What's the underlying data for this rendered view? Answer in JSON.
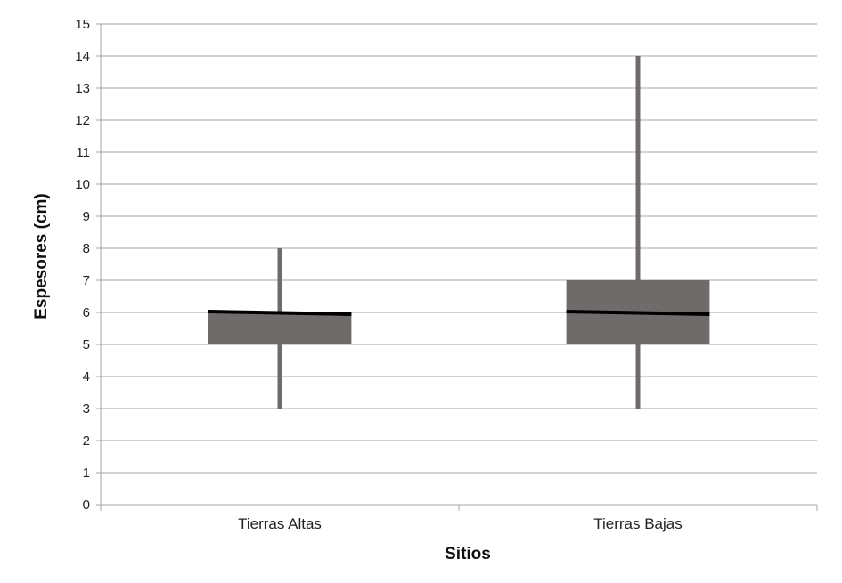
{
  "chart_data": {
    "type": "boxplot",
    "title": "",
    "xlabel": "Sitios",
    "ylabel": "Espesores (cm)",
    "ylim": [
      0,
      15
    ],
    "ytick_step": 1,
    "grid": true,
    "legend": "none",
    "categories": [
      "Tierras Altas",
      "Tierras Bajas"
    ],
    "boxes": [
      {
        "category": "Tierras Altas",
        "min": 3,
        "q1": 5,
        "median": 6,
        "q3": 6,
        "max": 8
      },
      {
        "category": "Tierras Bajas",
        "min": 3,
        "q1": 5,
        "median": 6,
        "q3": 7,
        "max": 14
      }
    ],
    "colors": {
      "box": "#6e6b6a",
      "whisker": "#6e6b6a",
      "median": "#000000",
      "grid": "#a6a6a6",
      "axis": "#a6a6a6"
    }
  }
}
